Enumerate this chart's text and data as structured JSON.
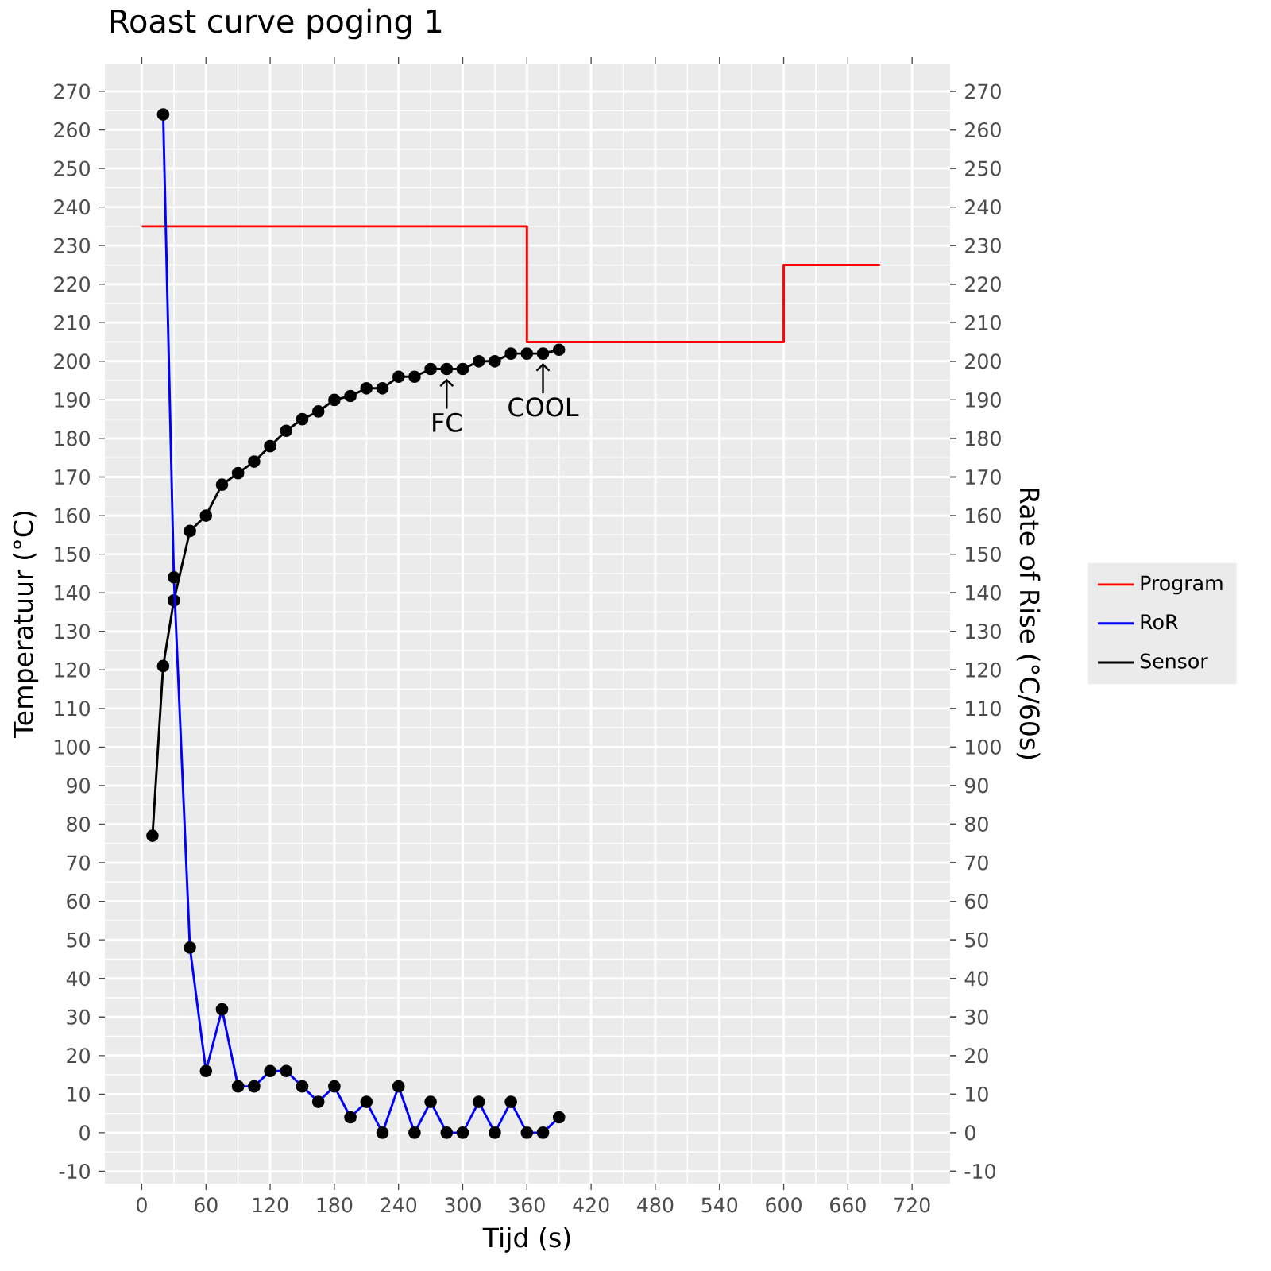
{
  "chart_data": {
    "type": "line",
    "title": "Roast curve poging 1",
    "xlabel": "Tijd (s)",
    "ylabel": "Temperatuur (°C)",
    "y2label": "Rate of Rise (°C/60s)",
    "xlim": [
      -34.5,
      755.5
    ],
    "xticks": [
      0,
      60,
      120,
      180,
      240,
      300,
      360,
      420,
      480,
      540,
      600,
      660,
      720
    ],
    "ylim": [
      -13.2,
      277.2
    ],
    "yticks": [
      -10,
      0,
      10,
      20,
      30,
      40,
      50,
      60,
      70,
      80,
      90,
      100,
      110,
      120,
      130,
      140,
      150,
      160,
      170,
      180,
      190,
      200,
      210,
      220,
      230,
      240,
      250,
      260,
      270
    ],
    "y2lim": [
      -13.2,
      277.2
    ],
    "y2ticks": [
      -10,
      0,
      10,
      20,
      30,
      40,
      50,
      60,
      70,
      80,
      90,
      100,
      110,
      120,
      130,
      140,
      150,
      160,
      170,
      180,
      190,
      200,
      210,
      220,
      230,
      240,
      250,
      260,
      270
    ],
    "grid": true,
    "legend": "right",
    "line_style": "solid",
    "series": [
      {
        "name": "Program",
        "type": "step",
        "color": "#ff0000",
        "marker": "none",
        "x": [
          0,
          360,
          600,
          690
        ],
        "values": [
          235,
          205,
          225,
          225
        ]
      },
      {
        "name": "RoR",
        "color": "#0000ff",
        "marker": "circle",
        "axis": "y2",
        "x": [
          20,
          30,
          45,
          60,
          75,
          90,
          105,
          120,
          135,
          150,
          165,
          180,
          195,
          210,
          225,
          240,
          255,
          270,
          285,
          300,
          315,
          330,
          345,
          360,
          375,
          390
        ],
        "values": [
          264,
          144,
          48,
          16,
          32,
          12,
          12,
          16,
          16,
          12,
          8,
          12,
          4,
          8,
          0,
          12,
          0,
          8,
          0,
          0,
          8,
          0,
          8,
          0,
          0,
          4
        ]
      },
      {
        "name": "Sensor",
        "color": "#000000",
        "marker": "circle",
        "x": [
          10,
          20,
          30,
          45,
          60,
          75,
          90,
          105,
          120,
          135,
          150,
          165,
          180,
          195,
          210,
          225,
          240,
          255,
          270,
          285,
          300,
          315,
          330,
          345,
          360,
          375,
          390
        ],
        "values": [
          77,
          121,
          138,
          156,
          160,
          168,
          171,
          174,
          178,
          182,
          185,
          187,
          190,
          191,
          193,
          193,
          196,
          196,
          198,
          198,
          198,
          200,
          200,
          202,
          202,
          202,
          203
        ]
      }
    ],
    "annotations": [
      {
        "text": "FC",
        "x": 285,
        "y": 198
      },
      {
        "text": "COOL",
        "x": 375,
        "y": 202
      }
    ]
  }
}
